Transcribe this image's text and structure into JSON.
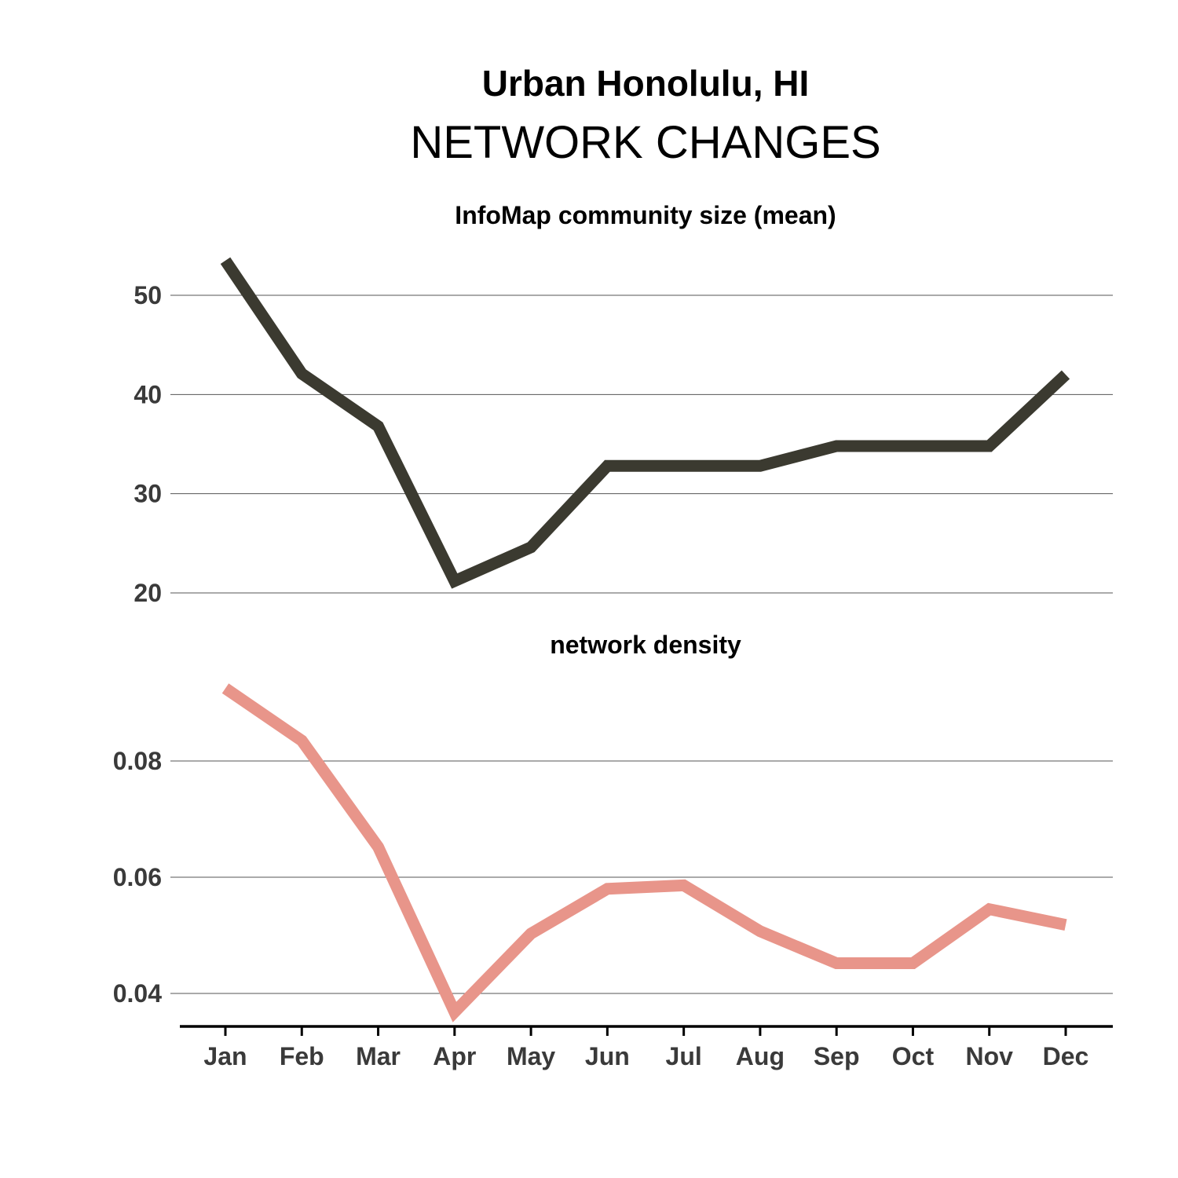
{
  "title_line1": "Urban Honolulu, HI",
  "title_line2": "NETWORK CHANGES",
  "chart_data": [
    {
      "type": "line",
      "title": "InfoMap community size (mean)",
      "categories": [
        "Jan",
        "Feb",
        "Mar",
        "Apr",
        "May",
        "Jun",
        "Jul",
        "Aug",
        "Sep",
        "Oct",
        "Nov",
        "Dec"
      ],
      "values": [
        53.5,
        42.1,
        36.8,
        21.2,
        24.6,
        32.8,
        32.8,
        32.8,
        34.8,
        34.8,
        34.8,
        42.0
      ],
      "yticks": [
        20,
        30,
        40,
        50
      ],
      "ytick_labels": [
        "20",
        "30",
        "40",
        "50"
      ],
      "ylim": [
        20,
        50
      ],
      "color": "#3b3a30",
      "grid": true
    },
    {
      "type": "line",
      "title": "network density",
      "categories": [
        "Jan",
        "Feb",
        "Mar",
        "Apr",
        "May",
        "Jun",
        "Jul",
        "Aug",
        "Sep",
        "Oct",
        "Nov",
        "Dec"
      ],
      "values": [
        0.0925,
        0.0835,
        0.0652,
        0.0368,
        0.0503,
        0.058,
        0.0586,
        0.0507,
        0.0452,
        0.0452,
        0.0545,
        0.0518
      ],
      "yticks": [
        0.04,
        0.06,
        0.08
      ],
      "ytick_labels": [
        "0.04",
        "0.06",
        "0.08"
      ],
      "ylim": [
        0.04,
        0.08
      ],
      "color": "#e8958a",
      "grid": true
    }
  ]
}
